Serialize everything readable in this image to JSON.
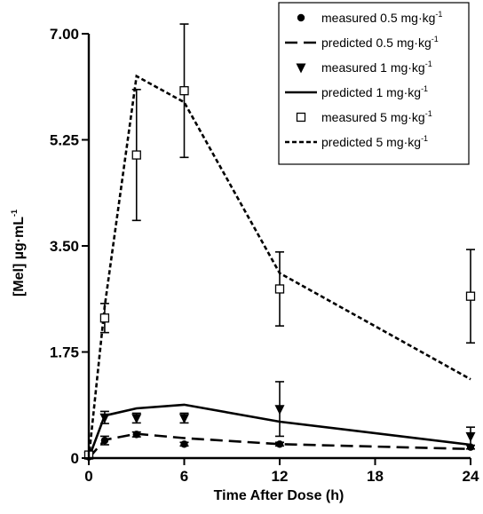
{
  "chart_data": {
    "type": "line",
    "xlabel": "Time After Dose (h)",
    "ylabel": "[Mel] µg·mL",
    "ylabel_sup": "-1",
    "xlim": [
      0,
      24
    ],
    "ylim": [
      0,
      7
    ],
    "xticks": [
      0,
      6,
      12,
      18,
      24
    ],
    "xtick_labels": [
      "0",
      "6",
      "12",
      "18",
      "24"
    ],
    "yticks": [
      0,
      1.75,
      3.5,
      5.25,
      7
    ],
    "ytick_labels": [
      "0",
      "1.75",
      "3.50",
      "5.25",
      "7.00"
    ],
    "grid": false,
    "legend_position": "top-right",
    "series": [
      {
        "name": "measured 0.5 mg·kg",
        "name_sup": "-1",
        "kind": "measured",
        "marker": "circle",
        "points": [
          {
            "x": 0,
            "y": 0.02,
            "err": 0
          },
          {
            "x": 1,
            "y": 0.29,
            "err": 0.07
          },
          {
            "x": 3,
            "y": 0.39,
            "err": 0.04
          },
          {
            "x": 6,
            "y": 0.23,
            "err": 0.03
          },
          {
            "x": 12,
            "y": 0.23,
            "err": 0.03
          },
          {
            "x": 24,
            "y": 0.18,
            "err": 0.03
          }
        ]
      },
      {
        "name": "predicted 0.5 mg·kg",
        "name_sup": "-1",
        "kind": "predicted",
        "dash": "long",
        "points": [
          {
            "x": 0,
            "y": 0.0
          },
          {
            "x": 1,
            "y": 0.3
          },
          {
            "x": 3,
            "y": 0.4
          },
          {
            "x": 6,
            "y": 0.33
          },
          {
            "x": 12,
            "y": 0.23
          },
          {
            "x": 24,
            "y": 0.15
          }
        ]
      },
      {
        "name": "measured 1 mg·kg",
        "name_sup": "-1",
        "kind": "measured",
        "marker": "triangle-down",
        "points": [
          {
            "x": 0,
            "y": 0.03,
            "err": 0
          },
          {
            "x": 1,
            "y": 0.67,
            "err": 0.1
          },
          {
            "x": 3,
            "y": 0.66,
            "err": 0.08
          },
          {
            "x": 6,
            "y": 0.66,
            "err": 0.08
          },
          {
            "x": 12,
            "y": 0.81,
            "err": 0.45
          },
          {
            "x": 24,
            "y": 0.36,
            "err": 0.15
          }
        ]
      },
      {
        "name": "predicted 1 mg·kg",
        "name_sup": "-1",
        "kind": "predicted",
        "dash": "solid",
        "points": [
          {
            "x": 0,
            "y": 0.0
          },
          {
            "x": 1,
            "y": 0.7
          },
          {
            "x": 3,
            "y": 0.82
          },
          {
            "x": 6,
            "y": 0.88
          },
          {
            "x": 12,
            "y": 0.6
          },
          {
            "x": 24,
            "y": 0.22
          }
        ]
      },
      {
        "name": "measured 5 mg·kg",
        "name_sup": "-1",
        "kind": "measured",
        "marker": "square-open",
        "points": [
          {
            "x": 0,
            "y": 0.05,
            "err": 0
          },
          {
            "x": 1,
            "y": 2.31,
            "err": 0.24
          },
          {
            "x": 3,
            "y": 5.0,
            "err": 1.08
          },
          {
            "x": 6,
            "y": 6.06,
            "err": 1.1
          },
          {
            "x": 12,
            "y": 2.79,
            "err": 0.61
          },
          {
            "x": 24,
            "y": 2.67,
            "err": 0.77
          }
        ]
      },
      {
        "name": "predicted 5 mg·kg",
        "name_sup": "-1",
        "kind": "predicted",
        "dash": "short",
        "points": [
          {
            "x": 0,
            "y": 0.0
          },
          {
            "x": 1,
            "y": 2.5
          },
          {
            "x": 3,
            "y": 6.3
          },
          {
            "x": 6,
            "y": 5.87
          },
          {
            "x": 12,
            "y": 3.05
          },
          {
            "x": 24,
            "y": 1.3
          }
        ]
      }
    ]
  }
}
